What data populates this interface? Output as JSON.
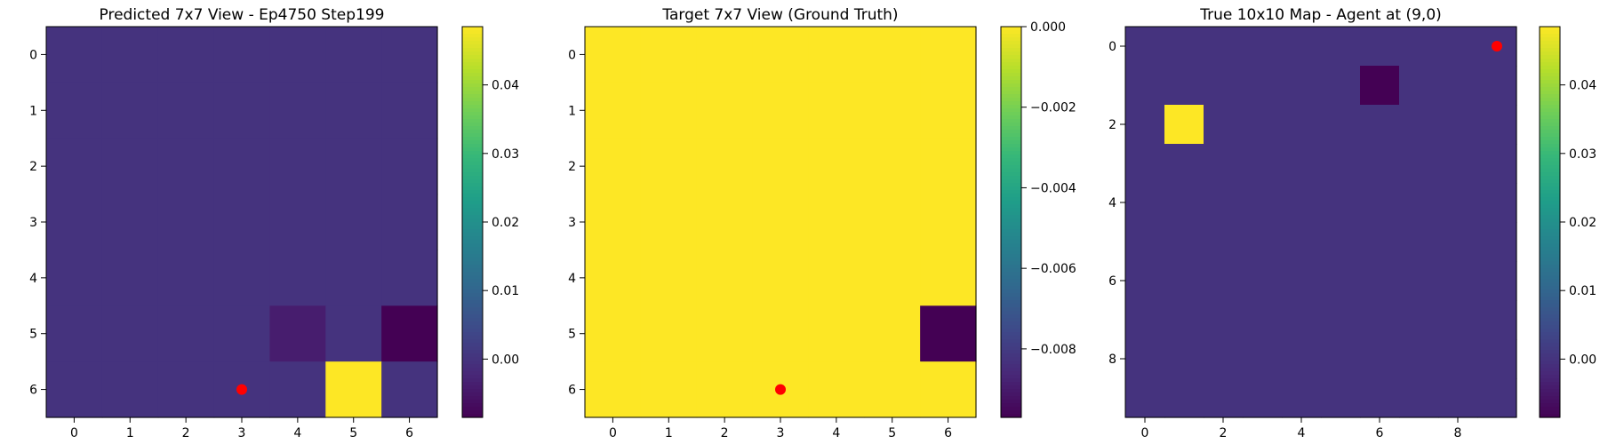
{
  "figure": {
    "background": "#ffffff",
    "agent_marker_color": "#ff0000"
  },
  "chart_data": [
    {
      "type": "heatmap",
      "title": "Predicted 7x7 View - Ep4750 Step199",
      "xlabel": "",
      "ylabel": "",
      "rows": 7,
      "cols": 7,
      "x_ticks": [
        0,
        1,
        2,
        3,
        4,
        5,
        6
      ],
      "y_ticks": [
        0,
        1,
        2,
        3,
        4,
        5,
        6
      ],
      "colormap": "viridis",
      "vmin": -0.0085,
      "vmax": 0.0485,
      "values": [
        [
          0,
          0,
          0,
          0,
          0,
          0,
          0
        ],
        [
          0,
          0,
          0,
          0,
          0,
          0,
          0
        ],
        [
          0,
          0,
          0,
          0,
          0,
          0,
          0
        ],
        [
          0,
          0,
          0,
          0,
          0,
          0,
          0
        ],
        [
          0,
          0,
          0,
          0,
          0,
          0,
          0
        ],
        [
          0,
          0,
          0,
          0,
          -0.004,
          0,
          -0.0085
        ],
        [
          0,
          0,
          0,
          0,
          0,
          0.0485,
          0
        ]
      ],
      "agent": {
        "x": 3,
        "y": 6
      },
      "colorbar": {
        "ticks": [
          0.0,
          0.01,
          0.02,
          0.03,
          0.04
        ],
        "tick_labels": [
          "0.00",
          "0.01",
          "0.02",
          "0.03",
          "0.04"
        ]
      }
    },
    {
      "type": "heatmap",
      "title": "Target 7x7 View (Ground Truth)",
      "xlabel": "",
      "ylabel": "",
      "rows": 7,
      "cols": 7,
      "x_ticks": [
        0,
        1,
        2,
        3,
        4,
        5,
        6
      ],
      "y_ticks": [
        0,
        1,
        2,
        3,
        4,
        5,
        6
      ],
      "colormap": "viridis",
      "vmin": -0.0097,
      "vmax": 0.0,
      "values": [
        [
          0,
          0,
          0,
          0,
          0,
          0,
          0
        ],
        [
          0,
          0,
          0,
          0,
          0,
          0,
          0
        ],
        [
          0,
          0,
          0,
          0,
          0,
          0,
          0
        ],
        [
          0,
          0,
          0,
          0,
          0,
          0,
          0
        ],
        [
          0,
          0,
          0,
          0,
          0,
          0,
          0
        ],
        [
          0,
          0,
          0,
          0,
          0,
          0,
          -0.0097
        ],
        [
          0,
          0,
          0,
          0,
          0,
          0,
          0
        ]
      ],
      "agent": {
        "x": 3,
        "y": 6
      },
      "colorbar": {
        "ticks": [
          0.0,
          -0.002,
          -0.004,
          -0.006,
          -0.008
        ],
        "tick_labels": [
          "0.000",
          "−0.002",
          "−0.004",
          "−0.006",
          "−0.008"
        ]
      }
    },
    {
      "type": "heatmap",
      "title": "True 10x10 Map - Agent at (9,0)",
      "xlabel": "",
      "ylabel": "",
      "rows": 10,
      "cols": 10,
      "x_ticks": [
        0,
        2,
        4,
        6,
        8
      ],
      "y_ticks": [
        0,
        2,
        4,
        6,
        8
      ],
      "colormap": "viridis",
      "vmin": -0.0085,
      "vmax": 0.0485,
      "values": [
        [
          0,
          0,
          0,
          0,
          0,
          0,
          0,
          0,
          0,
          0
        ],
        [
          0,
          0,
          0,
          0,
          0,
          0,
          -0.0085,
          0,
          0,
          0
        ],
        [
          0,
          0.0485,
          0,
          0,
          0,
          0,
          0,
          0,
          0,
          0
        ],
        [
          0,
          0,
          0,
          0,
          0,
          0,
          0,
          0,
          0,
          0
        ],
        [
          0,
          0,
          0,
          0,
          0,
          0,
          0,
          0,
          0,
          0
        ],
        [
          0,
          0,
          0,
          0,
          0,
          0,
          0,
          0,
          0,
          0
        ],
        [
          0,
          0,
          0,
          0,
          0,
          0,
          0,
          0,
          0,
          0
        ],
        [
          0,
          0,
          0,
          0,
          0,
          0,
          0,
          0,
          0,
          0
        ],
        [
          0,
          0,
          0,
          0,
          0,
          0,
          0,
          0,
          0,
          0
        ],
        [
          0,
          0,
          0,
          0,
          0,
          0,
          0,
          0,
          0,
          0
        ]
      ],
      "agent": {
        "x": 9,
        "y": 0
      },
      "colorbar": {
        "ticks": [
          0.0,
          0.01,
          0.02,
          0.03,
          0.04
        ],
        "tick_labels": [
          "0.00",
          "0.01",
          "0.02",
          "0.03",
          "0.04"
        ]
      }
    }
  ]
}
